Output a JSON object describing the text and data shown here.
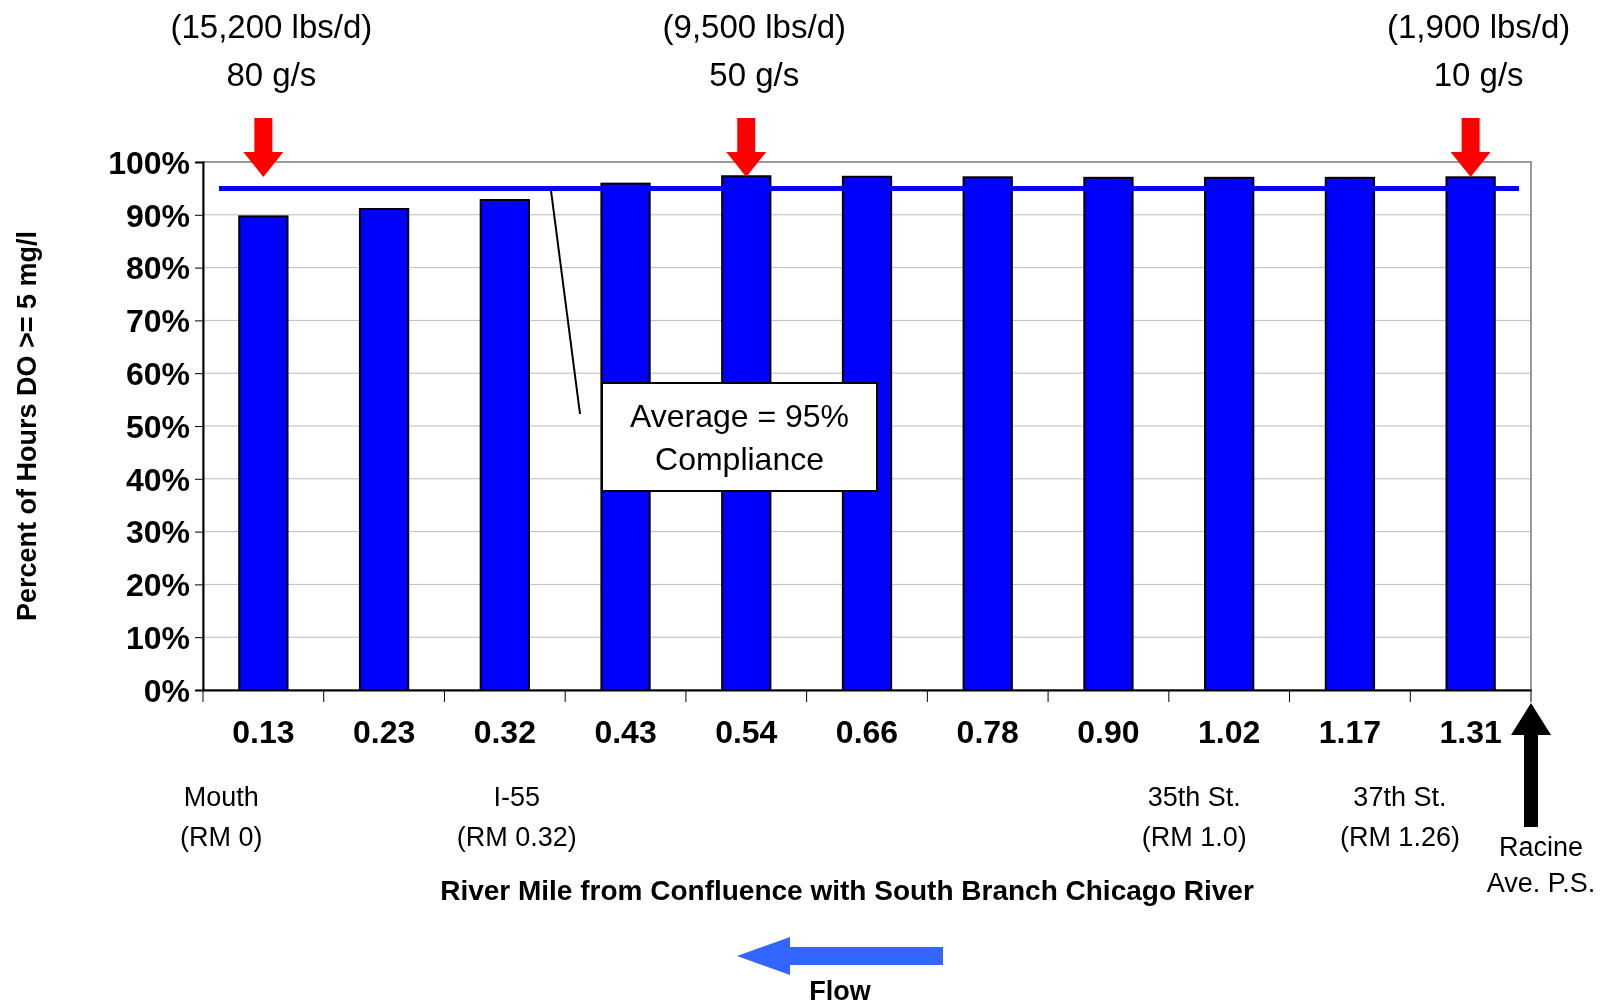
{
  "chart_data": {
    "type": "bar",
    "xlabel": "River Mile from Confluence with South Branch Chicago River",
    "ylabel": "Percent of Hours DO >= 5 mg/l",
    "categories": [
      "0.13",
      "0.23",
      "0.32",
      "0.43",
      "0.54",
      "0.66",
      "0.78",
      "0.90",
      "1.02",
      "1.17",
      "1.31"
    ],
    "values": [
      89.7,
      91.1,
      92.8,
      95.9,
      97.3,
      97.2,
      97.1,
      97.0,
      97.0,
      97.0,
      97.1
    ],
    "color": "#0000ff",
    "ylim": [
      0,
      100
    ],
    "yticks": [
      {
        "value": 0,
        "label": "0%"
      },
      {
        "value": 10,
        "label": "10%"
      },
      {
        "value": 20,
        "label": "20%"
      },
      {
        "value": 30,
        "label": "30%"
      },
      {
        "value": 40,
        "label": "40%"
      },
      {
        "value": 50,
        "label": "50%"
      },
      {
        "value": 60,
        "label": "60%"
      },
      {
        "value": 70,
        "label": "70%"
      },
      {
        "value": 80,
        "label": "80%"
      },
      {
        "value": 90,
        "label": "90%"
      },
      {
        "value": 100,
        "label": "100%"
      }
    ],
    "grid": "y",
    "ref_lines": [
      {
        "axis": "y",
        "value": 95,
        "color": "#0000ff"
      }
    ],
    "annotations": [
      "(15,200 lbs/d)\n80 g/s",
      "(9,500 lbs/d)\n50 g/s",
      "(1,900 lbs/d)\n10 g/s",
      "Mouth\n(RM 0)",
      "I-55\n(RM 0.32)",
      "35th St.\n(RM 1.0)",
      "37th St.\n(RM 1.26)",
      "Racine\nAve. P.S.",
      "Flow",
      "Average = 95%\nCompliance"
    ]
  }
}
